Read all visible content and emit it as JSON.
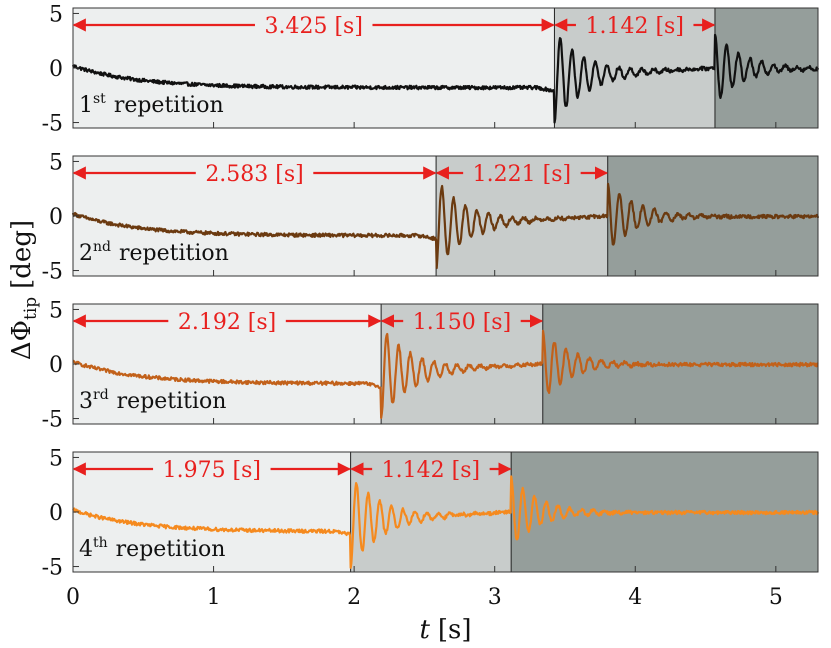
{
  "chart_data": {
    "type": "line",
    "xlabel": "t [s]",
    "xlabel_var": "t",
    "xlabel_unit": "[s]",
    "ylabel": "ΔΦtip [deg]",
    "ylabel_symbol": "ΔΦ",
    "ylabel_sub": "tip",
    "ylabel_unit": "[deg]",
    "xlim": [
      0,
      5.3
    ],
    "ylim": [
      -5.5,
      5.5
    ],
    "xticks": [
      0,
      1,
      2,
      3,
      4,
      5
    ],
    "yticks": [
      5,
      0,
      -5
    ],
    "ytick_labels": [
      "5",
      "0",
      "-5"
    ],
    "annotation_color": "#e8201e",
    "region_colors": [
      "#edefef",
      "#c8cccb",
      "#959e9b"
    ],
    "panels": [
      {
        "label_num": "1",
        "label_sup": "st",
        "label_text": "repetition",
        "color": "#111111",
        "phase1_end": 3.425,
        "phase2_end": 4.567,
        "interval1_label": "3.425 [s]",
        "interval2_label": "1.142 [s]"
      },
      {
        "label_num": "2",
        "label_sup": "nd",
        "label_text": "repetition",
        "color": "#6b3a10",
        "phase1_end": 2.583,
        "phase2_end": 3.804,
        "interval1_label": "2.583 [s]",
        "interval2_label": "1.221 [s]"
      },
      {
        "label_num": "3",
        "label_sup": "rd",
        "label_text": "repetition",
        "color": "#c2611a",
        "phase1_end": 2.192,
        "phase2_end": 3.342,
        "interval1_label": "2.192 [s]",
        "interval2_label": "1.150 [s]"
      },
      {
        "label_num": "4",
        "label_sup": "th",
        "label_text": "repetition",
        "color": "#f58a1f",
        "phase1_end": 1.975,
        "phase2_end": 3.117,
        "interval1_label": "1.975 [s]",
        "interval2_label": "1.142 [s]"
      }
    ]
  }
}
